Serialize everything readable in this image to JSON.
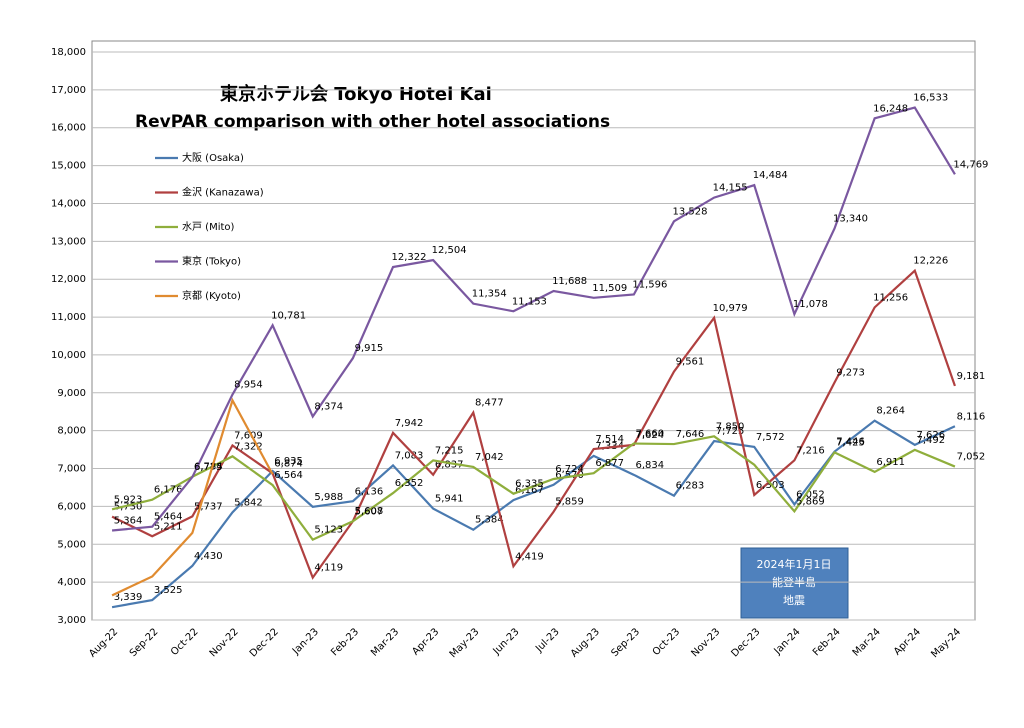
{
  "chart_data": {
    "type": "line",
    "title": "東京ホテル会  Tokyo Hotel Kai",
    "subtitle": "RevPAR comparison with other hotel associations",
    "annotation": [
      "2024年1月1日",
      "能登半島",
      "地震"
    ],
    "categories": [
      "Aug-22",
      "Sep-22",
      "Oct-22",
      "Nov-22",
      "Dec-22",
      "Jan-23",
      "Feb-23",
      "Mar-23",
      "Apr-23",
      "May-23",
      "Jun-23",
      "Jul-23",
      "Aug-23",
      "Sep-23",
      "Oct-23",
      "Nov-23",
      "Dec-23",
      "Jan-24",
      "Feb-24",
      "Mar-24",
      "Apr-24",
      "May-24"
    ],
    "series": [
      {
        "name": "大阪 (Osaka)",
        "color": "#4a7ab0",
        "values": [
          3339,
          3525,
          4430,
          5842,
          6935,
          5988,
          6136,
          7083,
          5941,
          5384,
          6167,
          6570,
          7334,
          6834,
          6283,
          7725,
          7572,
          6052,
          7446,
          8264,
          7626,
          8116
        ],
        "value_labels": [
          "3,339",
          "3,525",
          "4,430",
          "5,842",
          "6,935",
          "5,988",
          "6,136",
          "7,083",
          "5,941",
          "5,384",
          "6,167",
          "6,570",
          "7,334",
          "6,834",
          "6,283",
          "7,725",
          "7,572",
          "6,052",
          "7,446",
          "8,264",
          "7,626",
          "8,116"
        ]
      },
      {
        "name": "金沢 (Kanazawa)",
        "color": "#b04040",
        "values": [
          5730,
          5211,
          5737,
          7609,
          6874,
          4119,
          5608,
          7942,
          6837,
          8477,
          4419,
          5859,
          7514,
          7624,
          9561,
          10979,
          6303,
          7216,
          9273,
          11256,
          12226,
          9181
        ],
        "value_labels": [
          "5,730",
          "5,211",
          "5,737",
          "7,609",
          "6,874",
          "4,119",
          "5,608",
          "7,942",
          "6,837",
          "8,477",
          "4,419",
          "5,859",
          "7,514",
          "7,624",
          "9,561",
          "10,979",
          "6,303",
          "7,216",
          "9,273",
          "11,256",
          "12,226",
          "9,181"
        ]
      },
      {
        "name": "水戸 (Mito)",
        "color": "#8fae3c",
        "values": [
          5923,
          6176,
          6784,
          7322,
          6564,
          5123,
          5607,
          6352,
          7215,
          7042,
          6335,
          6724,
          6877,
          7660,
          7646,
          7850,
          7100,
          5869,
          7425,
          6911,
          7492,
          7052
        ],
        "value_labels": [
          "5,923",
          "6,176",
          "6,784",
          "7,322",
          "6,564",
          "5,123",
          "5,607",
          "6,352",
          "7,215",
          "7,042",
          "6,335",
          "6,724",
          "6,877",
          "7,660",
          "7,646",
          "7,850",
          null,
          "5,869",
          "7,425",
          "6,911",
          "7,492",
          "7,052"
        ]
      },
      {
        "name": "東京 (Tokyo)",
        "color": "#7a58a0",
        "values": [
          5364,
          5464,
          6775,
          8954,
          10781,
          8374,
          9915,
          12322,
          12504,
          11354,
          11153,
          11688,
          11509,
          11596,
          13528,
          14155,
          14484,
          11078,
          13340,
          16248,
          16533,
          14769
        ],
        "value_labels": [
          "5,364",
          "5,464",
          "6,775",
          "8,954",
          "10,781",
          "8,374",
          "9,915",
          "12,322",
          "12,504",
          "11,354",
          "11,153",
          "11,688",
          "11,509",
          "11,596",
          "13,528",
          "14,155",
          "14,484",
          "11,078",
          "13,340",
          "16,248",
          "16,533",
          "14,769"
        ]
      },
      {
        "name": "京都 (Kyoto)",
        "color": "#e08b30",
        "values": [
          3650,
          4150,
          5300,
          8800,
          6850,
          null,
          null,
          null,
          null,
          null,
          null,
          null,
          null,
          null,
          null,
          null,
          null,
          null,
          null,
          null,
          null,
          null
        ]
      }
    ],
    "ylim": [
      3000,
      18000
    ],
    "yticks": [
      {
        "value": 3000,
        "label": "3,000"
      },
      {
        "value": 4000,
        "label": "4,000"
      },
      {
        "value": 5000,
        "label": "5,000"
      },
      {
        "value": 6000,
        "label": "6,000"
      },
      {
        "value": 7000,
        "label": "7,000"
      },
      {
        "value": 8000,
        "label": "8,000"
      },
      {
        "value": 9000,
        "label": "9,000"
      },
      {
        "value": 10000,
        "label": "10,000"
      },
      {
        "value": 11000,
        "label": "11,000"
      },
      {
        "value": 12000,
        "label": "12,000"
      },
      {
        "value": 13000,
        "label": "13,000"
      },
      {
        "value": 14000,
        "label": "14,000"
      },
      {
        "value": 15000,
        "label": "15,000"
      },
      {
        "value": 16000,
        "label": "16,000"
      },
      {
        "value": 17000,
        "label": "17,000"
      },
      {
        "value": 18000,
        "label": "18,000"
      }
    ],
    "grid": true
  }
}
